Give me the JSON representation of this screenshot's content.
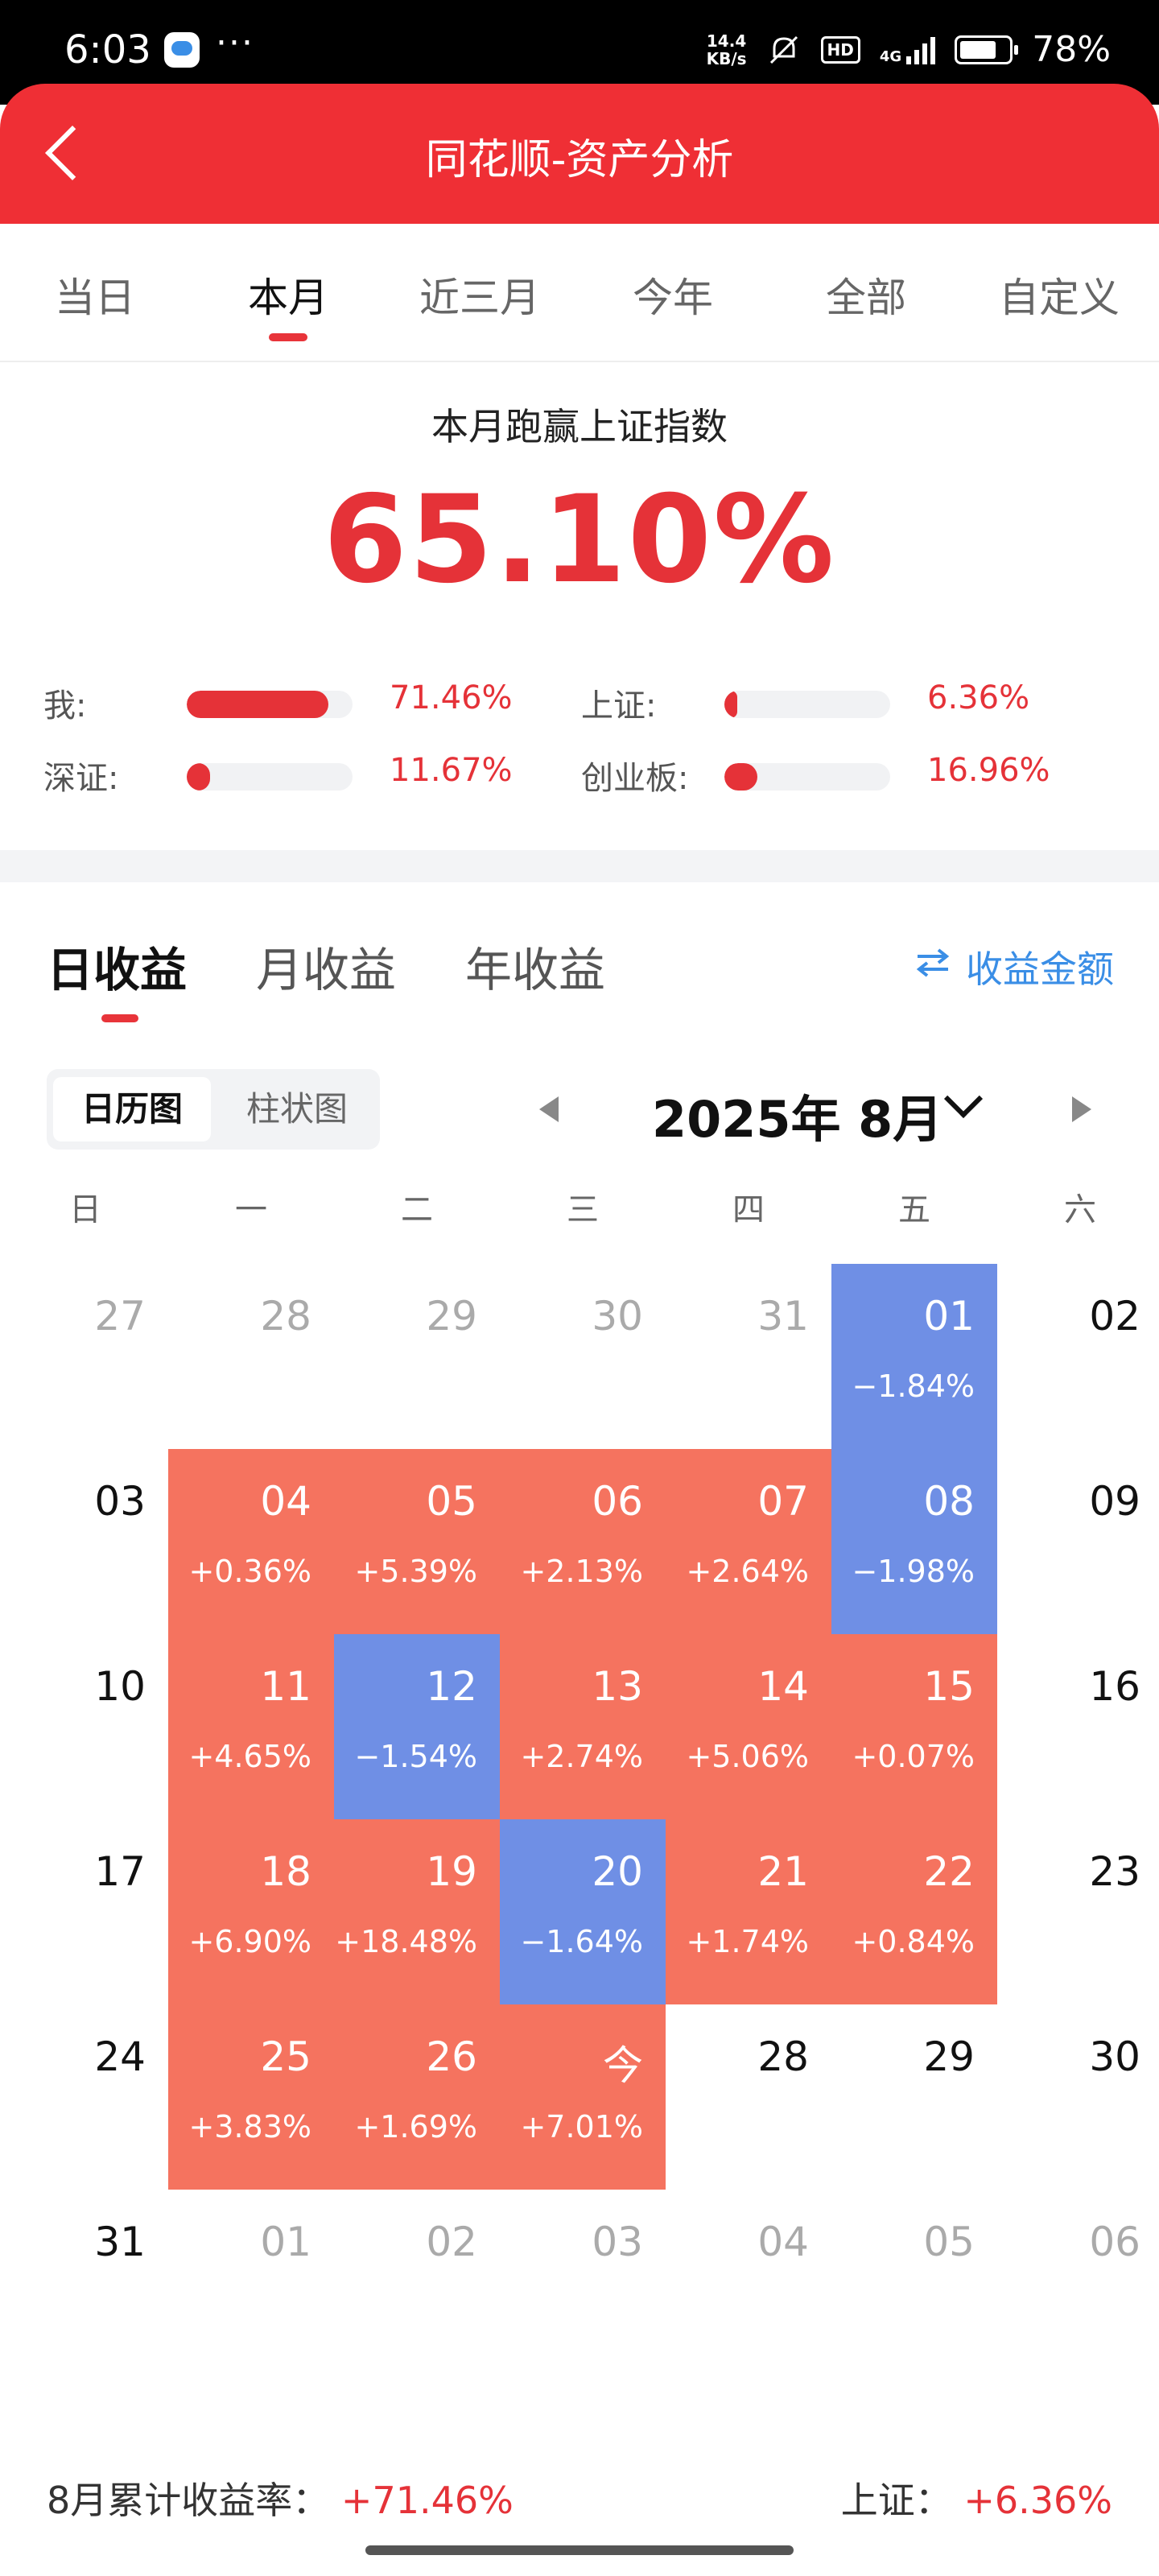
{
  "status_bar": {
    "time": "6:03",
    "dots": "···",
    "net_speed_value": "14.4",
    "net_speed_unit": "KB/s",
    "hd": "HD",
    "network": "4G",
    "battery": "78%",
    "icons": [
      "message-icon",
      "mute-icon",
      "signal-icon",
      "battery-icon"
    ]
  },
  "header": {
    "title": "同花顺-资产分析",
    "back_icon": "chevron-left-icon"
  },
  "period_tabs": {
    "selected": "本月",
    "items": [
      "当日",
      "本月",
      "近三月",
      "今年",
      "全部",
      "自定义"
    ]
  },
  "summary": {
    "label": "本月跑赢上证指数",
    "value": "65.10%",
    "comparisons": [
      {
        "label": "我:",
        "value": "71.46%",
        "fill": 0.8546
      },
      {
        "label": "上证:",
        "value": "6.36%",
        "fill": 0.08
      },
      {
        "label": "深证:",
        "value": "11.67%",
        "fill": 0.14
      },
      {
        "label": "创业板:",
        "value": "16.96%",
        "fill": 0.2
      }
    ]
  },
  "income_tabs": {
    "selected": "日收益",
    "items": [
      "日收益",
      "月收益",
      "年收益"
    ],
    "amount_toggle": "收益金额",
    "amount_toggle_icon": "swap-icon"
  },
  "view_toggle": {
    "selected": "日历图",
    "items": [
      "日历图",
      "柱状图"
    ]
  },
  "calendar": {
    "month_label": "2025年 8月",
    "weekdays": [
      "日",
      "一",
      "二",
      "三",
      "四",
      "五",
      "六"
    ],
    "weeks": [
      [
        {
          "day": "27",
          "type": "other"
        },
        {
          "day": "28",
          "type": "other"
        },
        {
          "day": "29",
          "type": "other"
        },
        {
          "day": "30",
          "type": "other"
        },
        {
          "day": "31",
          "type": "other"
        },
        {
          "day": "01",
          "type": "down",
          "ret": "−1.84%"
        },
        {
          "day": "02",
          "type": "empty"
        }
      ],
      [
        {
          "day": "03",
          "type": "empty"
        },
        {
          "day": "04",
          "type": "up",
          "ret": "+0.36%"
        },
        {
          "day": "05",
          "type": "up",
          "ret": "+5.39%"
        },
        {
          "day": "06",
          "type": "up",
          "ret": "+2.13%"
        },
        {
          "day": "07",
          "type": "up",
          "ret": "+2.64%"
        },
        {
          "day": "08",
          "type": "down",
          "ret": "−1.98%"
        },
        {
          "day": "09",
          "type": "empty"
        }
      ],
      [
        {
          "day": "10",
          "type": "empty"
        },
        {
          "day": "11",
          "type": "up",
          "ret": "+4.65%"
        },
        {
          "day": "12",
          "type": "down",
          "ret": "−1.54%"
        },
        {
          "day": "13",
          "type": "up",
          "ret": "+2.74%"
        },
        {
          "day": "14",
          "type": "up",
          "ret": "+5.06%"
        },
        {
          "day": "15",
          "type": "up",
          "ret": "+0.07%"
        },
        {
          "day": "16",
          "type": "empty"
        }
      ],
      [
        {
          "day": "17",
          "type": "empty"
        },
        {
          "day": "18",
          "type": "up",
          "ret": "+6.90%"
        },
        {
          "day": "19",
          "type": "up",
          "ret": "+18.48%"
        },
        {
          "day": "20",
          "type": "down",
          "ret": "−1.64%"
        },
        {
          "day": "21",
          "type": "up",
          "ret": "+1.74%"
        },
        {
          "day": "22",
          "type": "up",
          "ret": "+0.84%"
        },
        {
          "day": "23",
          "type": "empty"
        }
      ],
      [
        {
          "day": "24",
          "type": "empty"
        },
        {
          "day": "25",
          "type": "up",
          "ret": "+3.83%"
        },
        {
          "day": "26",
          "type": "up",
          "ret": "+1.69%"
        },
        {
          "day": "今",
          "type": "up",
          "ret": "+7.01%"
        },
        {
          "day": "28",
          "type": "empty"
        },
        {
          "day": "29",
          "type": "empty"
        },
        {
          "day": "30",
          "type": "empty"
        }
      ],
      [
        {
          "day": "31",
          "type": "empty"
        },
        {
          "day": "01",
          "type": "other"
        },
        {
          "day": "02",
          "type": "other"
        },
        {
          "day": "03",
          "type": "other"
        },
        {
          "day": "04",
          "type": "other"
        },
        {
          "day": "05",
          "type": "other"
        },
        {
          "day": "06",
          "type": "other"
        }
      ]
    ]
  },
  "footer": {
    "cumulative_label": "8月累计收益率：",
    "cumulative_value": "+71.46%",
    "index_label": "上证：",
    "index_value": "+6.36%"
  },
  "colors": {
    "brand_red": "#ef2f35",
    "gain_cell": "#f5735f",
    "loss_cell": "#6f8fe5",
    "link_blue": "#3a8ee6"
  }
}
